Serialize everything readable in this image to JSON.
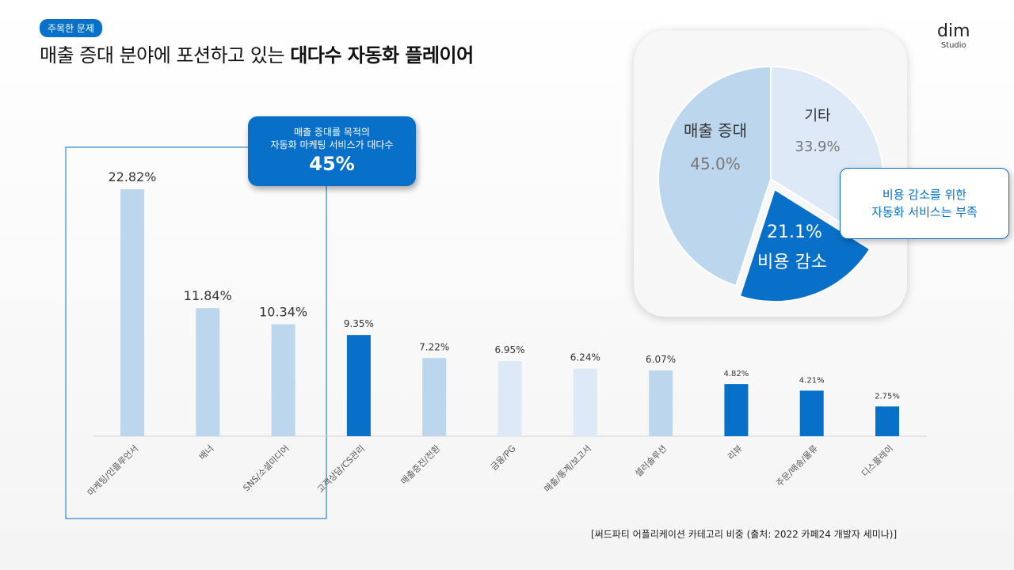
{
  "tag": "주목한 문제",
  "title_normal": "매출 증대 분야에 포션하고 있는 ",
  "title_bold": "대다수 자동화 플레이어",
  "logo": {
    "name": "dim",
    "sub": "Studio"
  },
  "callout": {
    "line1": "매출 증대를 목적의",
    "line2": "자동화 마케팅 서비스가 대다수",
    "value": "45%"
  },
  "pie_callout": {
    "line1": "비용 감소를 위한",
    "line2": "자동화 서비스는 부족"
  },
  "source": "[써드파티 어플리케이션 카테고리 비중 (출처: 2022 카페24 개발자 세미나)]",
  "colors": {
    "light": "#bcd6ee",
    "lighter": "#dde9f6",
    "dark": "#0870c8"
  },
  "chart_data": [
    {
      "type": "bar",
      "categories": [
        "마케팅/인플루언서",
        "배너",
        "SNS/소셜미디어",
        "고객상담/CS관리",
        "매출증진/전환",
        "금융/PG",
        "매출/통계/보고서",
        "셀러솔루션",
        "리뷰",
        "주문/배송/물류",
        "디스플레이"
      ],
      "values": [
        22.82,
        11.84,
        10.34,
        9.35,
        7.22,
        6.95,
        6.24,
        6.07,
        4.82,
        4.21,
        2.75
      ],
      "value_labels": [
        "22.82%",
        "11.84%",
        "10.34%",
        "9.35%",
        "7.22%",
        "6.95%",
        "6.24%",
        "6.07%",
        "4.82%",
        "4.21%",
        "2.75%"
      ],
      "bar_colors": [
        "#bcd6ee",
        "#bcd6ee",
        "#bcd6ee",
        "#0870c8",
        "#bcd6ee",
        "#dde9f6",
        "#dde9f6",
        "#bcd6ee",
        "#0870c8",
        "#0870c8",
        "#0870c8"
      ],
      "ylim": [
        0,
        25
      ]
    },
    {
      "type": "pie",
      "slices": [
        {
          "label": "매출 증대",
          "value": 45.0,
          "value_label": "45.0%",
          "color": "#bcd6ee"
        },
        {
          "label": "기타",
          "value": 33.9,
          "value_label": "33.9%",
          "color": "#dde9f6"
        },
        {
          "label": "비용 감소",
          "value": 21.1,
          "value_label": "21.1%",
          "color": "#0870c8"
        }
      ]
    }
  ]
}
